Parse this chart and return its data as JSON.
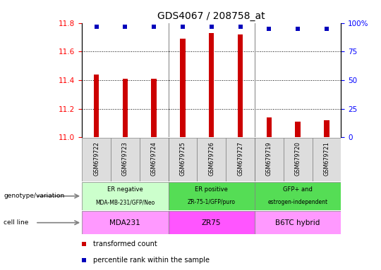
{
  "title": "GDS4067 / 208758_at",
  "samples": [
    "GSM679722",
    "GSM679723",
    "GSM679724",
    "GSM679725",
    "GSM679726",
    "GSM679727",
    "GSM679719",
    "GSM679720",
    "GSM679721"
  ],
  "transformed_counts": [
    11.44,
    11.41,
    11.41,
    11.69,
    11.73,
    11.72,
    11.14,
    11.11,
    11.12
  ],
  "percentile_ranks": [
    97,
    97,
    97,
    97,
    97,
    97,
    95,
    95,
    95
  ],
  "ylim_left": [
    11.0,
    11.8
  ],
  "ylim_right": [
    0,
    100
  ],
  "yticks_left": [
    11.0,
    11.2,
    11.4,
    11.6,
    11.8
  ],
  "yticks_right": [
    0,
    25,
    50,
    75,
    100
  ],
  "bar_color": "#cc0000",
  "dot_color": "#0000bb",
  "groups": [
    {
      "label_top": "ER negative",
      "label_bot": "MDA-MB-231/GFP/Neo",
      "cell_line": "MDA231",
      "start": 0,
      "end": 3,
      "geno_color": "#ccffcc",
      "cell_color": "#ff99ff"
    },
    {
      "label_top": "ER positive",
      "label_bot": "ZR-75-1/GFP/puro",
      "cell_line": "ZR75",
      "start": 3,
      "end": 6,
      "geno_color": "#55dd55",
      "cell_color": "#ff55ff"
    },
    {
      "label_top": "GFP+ and",
      "label_bot": "estrogen-independent",
      "cell_line": "B6TC hybrid",
      "start": 6,
      "end": 9,
      "geno_color": "#55dd55",
      "cell_color": "#ff99ff"
    }
  ],
  "left_labels": [
    "genotype/variation",
    "cell line"
  ],
  "legend_items": [
    {
      "label": "transformed count",
      "color": "#cc0000"
    },
    {
      "label": "percentile rank within the sample",
      "color": "#0000bb"
    }
  ],
  "title_fontsize": 10,
  "tick_fontsize": 7.5,
  "bar_width": 0.18
}
